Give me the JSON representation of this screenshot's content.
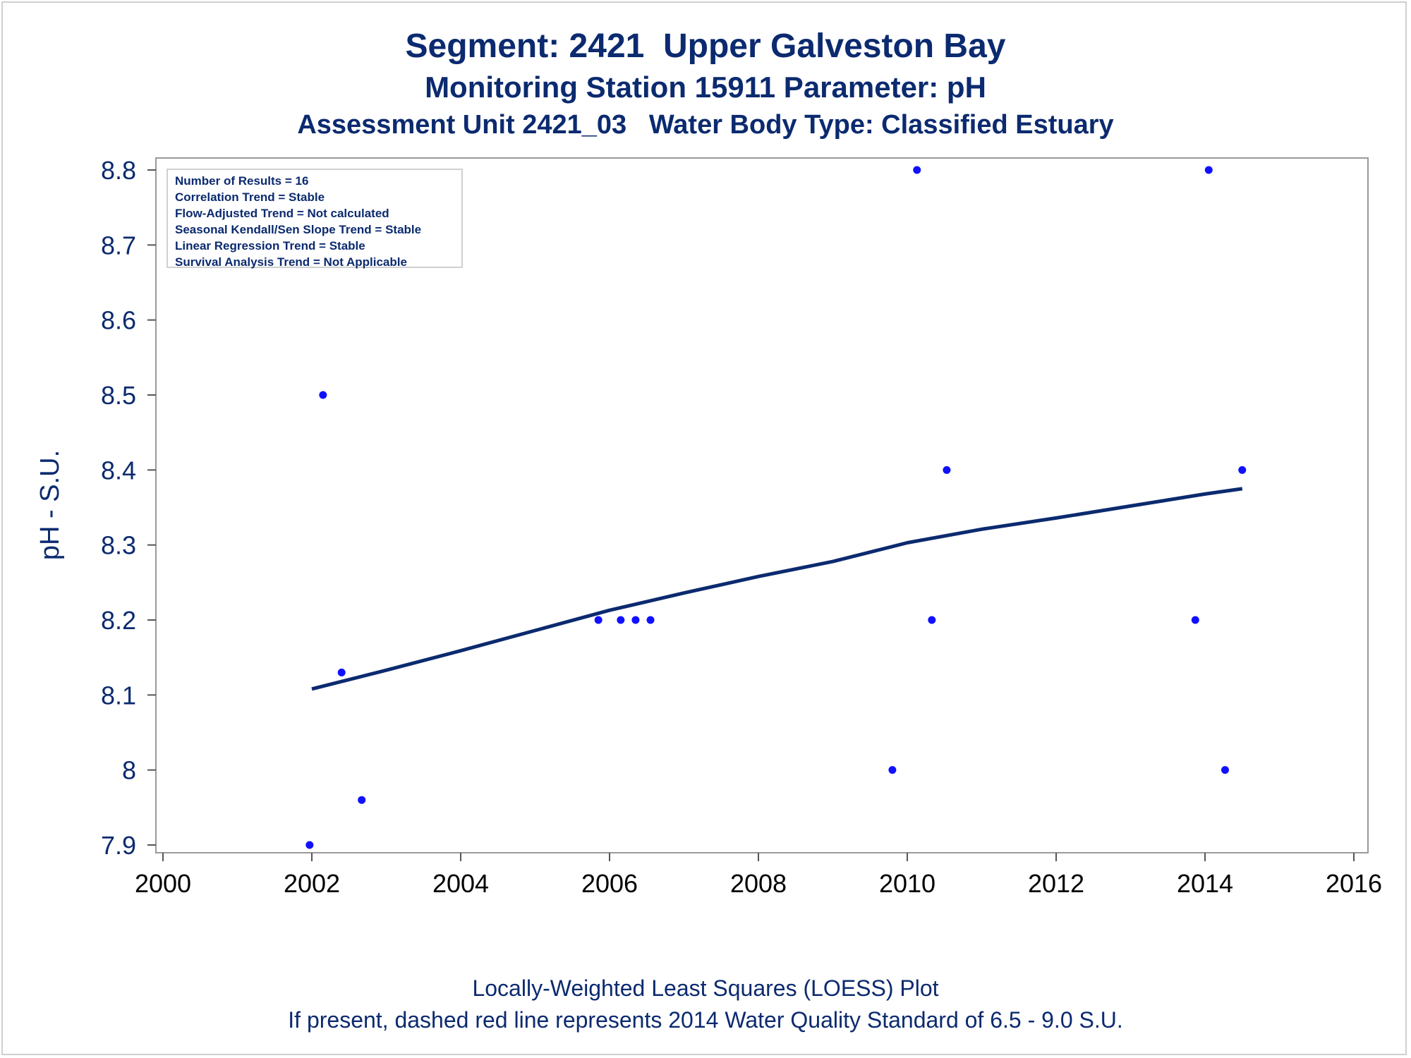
{
  "chart_data": {
    "type": "scatter",
    "title": "Segment: 2421  Upper Galveston Bay",
    "subtitle": "Monitoring Station 15911 Parameter: pH",
    "subtitle2": "Assessment Unit 2421_03   Water Body Type: Classified Estuary",
    "xlabel": "",
    "ylabel": "pH - S.U.",
    "xlim": [
      2000,
      2016
    ],
    "ylim": [
      7.9,
      8.8
    ],
    "x_ticks": [
      "2000",
      "2002",
      "2004",
      "2006",
      "2008",
      "2010",
      "2012",
      "2014",
      "2016"
    ],
    "y_ticks": [
      "7.9",
      "8",
      "8.1",
      "8.2",
      "8.3",
      "8.4",
      "8.5",
      "8.6",
      "8.7",
      "8.8"
    ],
    "grid": false,
    "series": [
      {
        "type": "scatter",
        "color": "#1010ff",
        "x": [
          2001.97,
          2002.15,
          2002.4,
          2002.67,
          2005.85,
          2006.15,
          2006.35,
          2006.55,
          2009.8,
          2010.13,
          2010.33,
          2010.53,
          2013.87,
          2014.05,
          2014.27,
          2014.5
        ],
        "y": [
          7.9,
          8.5,
          8.13,
          7.96,
          8.2,
          8.2,
          8.2,
          8.2,
          8.0,
          8.8,
          8.2,
          8.4,
          8.2,
          8.8,
          8.0,
          8.4
        ]
      },
      {
        "type": "line",
        "color": "#0b2a6f",
        "x": [
          2002.0,
          2003.0,
          2004.0,
          2005.0,
          2006.0,
          2007.0,
          2008.0,
          2009.0,
          2010.0,
          2011.0,
          2012.0,
          2013.0,
          2014.0,
          2014.5
        ],
        "y": [
          8.108,
          8.133,
          8.159,
          8.186,
          8.213,
          8.236,
          8.258,
          8.278,
          8.303,
          8.321,
          8.336,
          8.352,
          8.368,
          8.375
        ]
      }
    ],
    "stats_lines": [
      "Number of Results = 16",
      "Correlation Trend = Stable",
      "Flow-Adjusted Trend = Not calculated",
      "Seasonal Kendall/Sen Slope Trend = Stable",
      "Linear Regression Trend = Stable",
      "Survival Analysis Trend = Not Applicable"
    ],
    "footnotes": [
      "Locally-Weighted Least Squares (LOESS) Plot",
      "If present, dashed red line represents 2014 Water Quality Standard of 6.5 - 9.0 S.U."
    ],
    "axis_color": "#0b2a6f",
    "frame_color": "#9a9a9a"
  }
}
